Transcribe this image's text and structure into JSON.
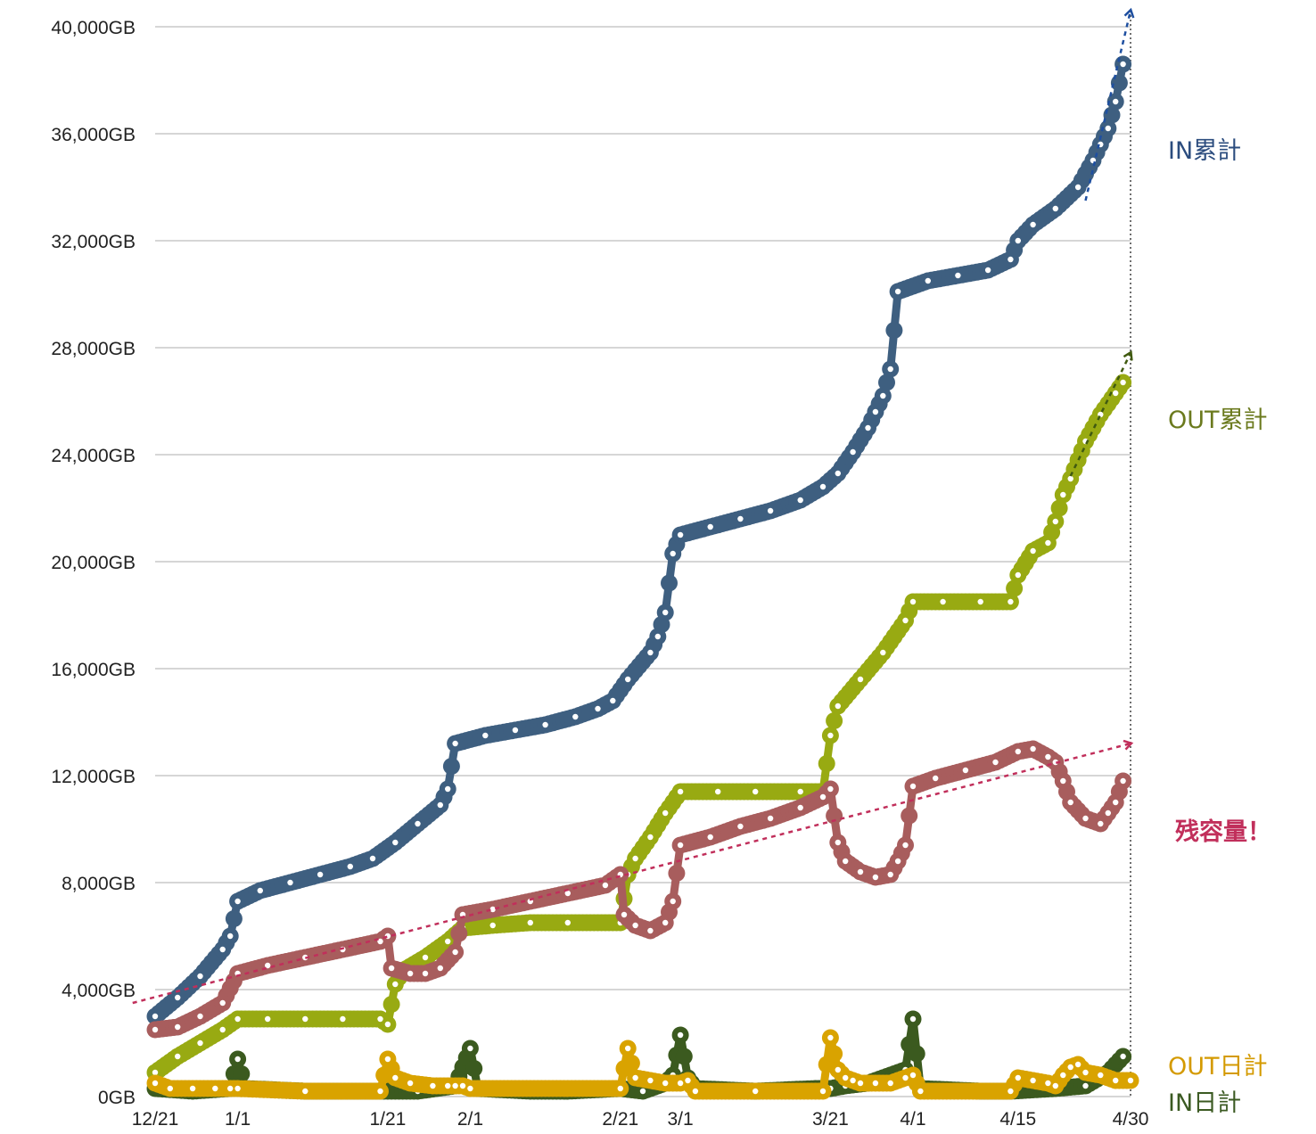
{
  "chart_data": {
    "type": "line",
    "title": "",
    "xlabel": "",
    "ylabel": "",
    "ylim": [
      0,
      40000
    ],
    "y_ticks": [
      "0GB",
      "4,000GB",
      "8,000GB",
      "12,000GB",
      "16,000GB",
      "20,000GB",
      "24,000GB",
      "28,000GB",
      "32,000GB",
      "36,000GB",
      "40,000GB"
    ],
    "y_tick_values": [
      0,
      4000,
      8000,
      12000,
      16000,
      20000,
      24000,
      28000,
      32000,
      36000,
      40000
    ],
    "x_tick_labels": [
      "12/21",
      "1/1",
      "1/21",
      "2/1",
      "2/21",
      "3/1",
      "3/21",
      "4/1",
      "4/15",
      "4/30"
    ],
    "x_tick_positions": [
      0,
      11,
      31,
      42,
      62,
      70,
      90,
      101,
      115,
      130
    ],
    "x_range": [
      0,
      130
    ],
    "grid": true,
    "legend": "series labels placed to the right of the plot",
    "series": [
      {
        "name": "IN累計",
        "color": "#3e5f80",
        "label_color": "#2b4c7e",
        "points": [
          [
            0,
            3000
          ],
          [
            3,
            3700
          ],
          [
            6,
            4500
          ],
          [
            9,
            5500
          ],
          [
            10,
            6000
          ],
          [
            11,
            7300
          ],
          [
            14,
            7700
          ],
          [
            18,
            8000
          ],
          [
            22,
            8300
          ],
          [
            26,
            8600
          ],
          [
            29,
            8900
          ],
          [
            32,
            9500
          ],
          [
            35,
            10200
          ],
          [
            38,
            10900
          ],
          [
            39,
            11500
          ],
          [
            40,
            13200
          ],
          [
            44,
            13500
          ],
          [
            48,
            13700
          ],
          [
            52,
            13900
          ],
          [
            56,
            14200
          ],
          [
            59,
            14500
          ],
          [
            61,
            14800
          ],
          [
            63,
            15600
          ],
          [
            66,
            16600
          ],
          [
            67,
            17200
          ],
          [
            68,
            18100
          ],
          [
            69,
            20300
          ],
          [
            70,
            21000
          ],
          [
            74,
            21300
          ],
          [
            78,
            21600
          ],
          [
            82,
            21900
          ],
          [
            86,
            22300
          ],
          [
            89,
            22800
          ],
          [
            91,
            23300
          ],
          [
            93,
            24100
          ],
          [
            95,
            25000
          ],
          [
            96,
            25600
          ],
          [
            97,
            26200
          ],
          [
            98,
            27200
          ],
          [
            99,
            30100
          ],
          [
            103,
            30500
          ],
          [
            107,
            30700
          ],
          [
            111,
            30900
          ],
          [
            114,
            31300
          ],
          [
            115,
            32000
          ],
          [
            117,
            32600
          ],
          [
            120,
            33200
          ],
          [
            123,
            34000
          ],
          [
            125,
            35000
          ],
          [
            126,
            35600
          ],
          [
            127,
            36200
          ],
          [
            128,
            37200
          ],
          [
            129,
            38600
          ]
        ],
        "trend": [
          [
            124,
            33500
          ],
          [
            130,
            40600
          ]
        ]
      },
      {
        "name": "OUT累計",
        "color": "#98aa12",
        "label_color": "#6b7a1e",
        "points": [
          [
            0,
            900
          ],
          [
            3,
            1500
          ],
          [
            6,
            2000
          ],
          [
            9,
            2500
          ],
          [
            11,
            2900
          ],
          [
            15,
            2900
          ],
          [
            20,
            2900
          ],
          [
            25,
            2900
          ],
          [
            30,
            2900
          ],
          [
            31,
            2700
          ],
          [
            32,
            4200
          ],
          [
            33,
            4700
          ],
          [
            36,
            5200
          ],
          [
            39,
            5800
          ],
          [
            41,
            6300
          ],
          [
            45,
            6400
          ],
          [
            50,
            6500
          ],
          [
            55,
            6500
          ],
          [
            62,
            6500
          ],
          [
            63,
            8300
          ],
          [
            64,
            8900
          ],
          [
            66,
            9700
          ],
          [
            68,
            10600
          ],
          [
            70,
            11400
          ],
          [
            75,
            11400
          ],
          [
            80,
            11400
          ],
          [
            86,
            11400
          ],
          [
            89,
            11400
          ],
          [
            90,
            13500
          ],
          [
            91,
            14600
          ],
          [
            94,
            15600
          ],
          [
            97,
            16600
          ],
          [
            100,
            17800
          ],
          [
            101,
            18500
          ],
          [
            105,
            18500
          ],
          [
            110,
            18500
          ],
          [
            114,
            18500
          ],
          [
            115,
            19500
          ],
          [
            117,
            20400
          ],
          [
            119,
            20700
          ],
          [
            120,
            21500
          ],
          [
            121,
            22500
          ],
          [
            122,
            23100
          ],
          [
            124,
            24500
          ],
          [
            126,
            25500
          ],
          [
            128,
            26300
          ],
          [
            129,
            26700
          ]
        ],
        "trend": [
          [
            122,
            23200
          ],
          [
            130,
            27800
          ]
        ]
      },
      {
        "name": "残容量！",
        "color": "#a85d5d",
        "label_color": "#c12f5b",
        "points": [
          [
            0,
            2500
          ],
          [
            3,
            2600
          ],
          [
            6,
            3000
          ],
          [
            9,
            3500
          ],
          [
            11,
            4600
          ],
          [
            15,
            4900
          ],
          [
            20,
            5200
          ],
          [
            25,
            5500
          ],
          [
            30,
            5800
          ],
          [
            31,
            6000
          ],
          [
            31.5,
            4800
          ],
          [
            34,
            4600
          ],
          [
            36,
            4600
          ],
          [
            38,
            4800
          ],
          [
            40,
            5400
          ],
          [
            41,
            6800
          ],
          [
            45,
            7000
          ],
          [
            50,
            7300
          ],
          [
            55,
            7600
          ],
          [
            60,
            7900
          ],
          [
            62,
            8300
          ],
          [
            62.5,
            6800
          ],
          [
            64,
            6400
          ],
          [
            66,
            6200
          ],
          [
            68,
            6500
          ],
          [
            69,
            7300
          ],
          [
            70,
            9400
          ],
          [
            74,
            9700
          ],
          [
            78,
            10100
          ],
          [
            82,
            10400
          ],
          [
            86,
            10800
          ],
          [
            89,
            11200
          ],
          [
            90,
            11500
          ],
          [
            91,
            9500
          ],
          [
            92,
            8800
          ],
          [
            94,
            8400
          ],
          [
            96,
            8200
          ],
          [
            98,
            8300
          ],
          [
            99,
            8800
          ],
          [
            100,
            9400
          ],
          [
            101,
            11600
          ],
          [
            104,
            11900
          ],
          [
            108,
            12200
          ],
          [
            112,
            12500
          ],
          [
            115,
            12900
          ],
          [
            117,
            13000
          ],
          [
            119,
            12700
          ],
          [
            120,
            12500
          ],
          [
            121,
            11800
          ],
          [
            122,
            11000
          ],
          [
            124,
            10400
          ],
          [
            126,
            10200
          ],
          [
            127,
            10600
          ],
          [
            128,
            11000
          ],
          [
            129,
            11800
          ]
        ],
        "trend": [
          [
            -3,
            3500
          ],
          [
            130,
            13200
          ]
        ]
      },
      {
        "name": "OUT日計",
        "color": "#d9a300",
        "label_color": "#d49a00",
        "points": [
          [
            0,
            500
          ],
          [
            2,
            300
          ],
          [
            5,
            300
          ],
          [
            8,
            300
          ],
          [
            10,
            300
          ],
          [
            11,
            300
          ],
          [
            20,
            200
          ],
          [
            30,
            200
          ],
          [
            31,
            1400
          ],
          [
            32,
            700
          ],
          [
            34,
            500
          ],
          [
            37,
            400
          ],
          [
            39,
            400
          ],
          [
            40,
            400
          ],
          [
            41,
            400
          ],
          [
            42,
            300
          ],
          [
            62,
            300
          ],
          [
            63,
            1800
          ],
          [
            64,
            700
          ],
          [
            66,
            600
          ],
          [
            68,
            500
          ],
          [
            70,
            500
          ],
          [
            71,
            600
          ],
          [
            72,
            200
          ],
          [
            80,
            200
          ],
          [
            89,
            200
          ],
          [
            90,
            2200
          ],
          [
            91,
            1000
          ],
          [
            92,
            700
          ],
          [
            93,
            600
          ],
          [
            94,
            500
          ],
          [
            96,
            500
          ],
          [
            98,
            500
          ],
          [
            100,
            700
          ],
          [
            101,
            800
          ],
          [
            102,
            200
          ],
          [
            114,
            200
          ],
          [
            115,
            700
          ],
          [
            117,
            600
          ],
          [
            119,
            500
          ],
          [
            120,
            400
          ],
          [
            121,
            800
          ],
          [
            122,
            1100
          ],
          [
            123,
            1200
          ],
          [
            124,
            900
          ],
          [
            126,
            800
          ],
          [
            128,
            600
          ],
          [
            130,
            600
          ]
        ]
      },
      {
        "name": "IN日計",
        "color": "#3b5a1f",
        "label_color": "#3b5a22",
        "points": [
          [
            0,
            300
          ],
          [
            5,
            200
          ],
          [
            10,
            300
          ],
          [
            11,
            1400
          ],
          [
            12,
            300
          ],
          [
            20,
            200
          ],
          [
            30,
            200
          ],
          [
            35,
            200
          ],
          [
            40,
            400
          ],
          [
            42,
            1800
          ],
          [
            43,
            300
          ],
          [
            50,
            200
          ],
          [
            55,
            200
          ],
          [
            62,
            300
          ],
          [
            65,
            200
          ],
          [
            68,
            500
          ],
          [
            69,
            800
          ],
          [
            70,
            2300
          ],
          [
            71,
            700
          ],
          [
            72,
            300
          ],
          [
            80,
            200
          ],
          [
            88,
            300
          ],
          [
            90,
            300
          ],
          [
            92,
            400
          ],
          [
            95,
            500
          ],
          [
            100,
            1000
          ],
          [
            101,
            2900
          ],
          [
            102,
            300
          ],
          [
            110,
            200
          ],
          [
            114,
            200
          ],
          [
            120,
            300
          ],
          [
            124,
            400
          ],
          [
            127,
            900
          ],
          [
            129,
            1500
          ]
        ]
      }
    ]
  }
}
